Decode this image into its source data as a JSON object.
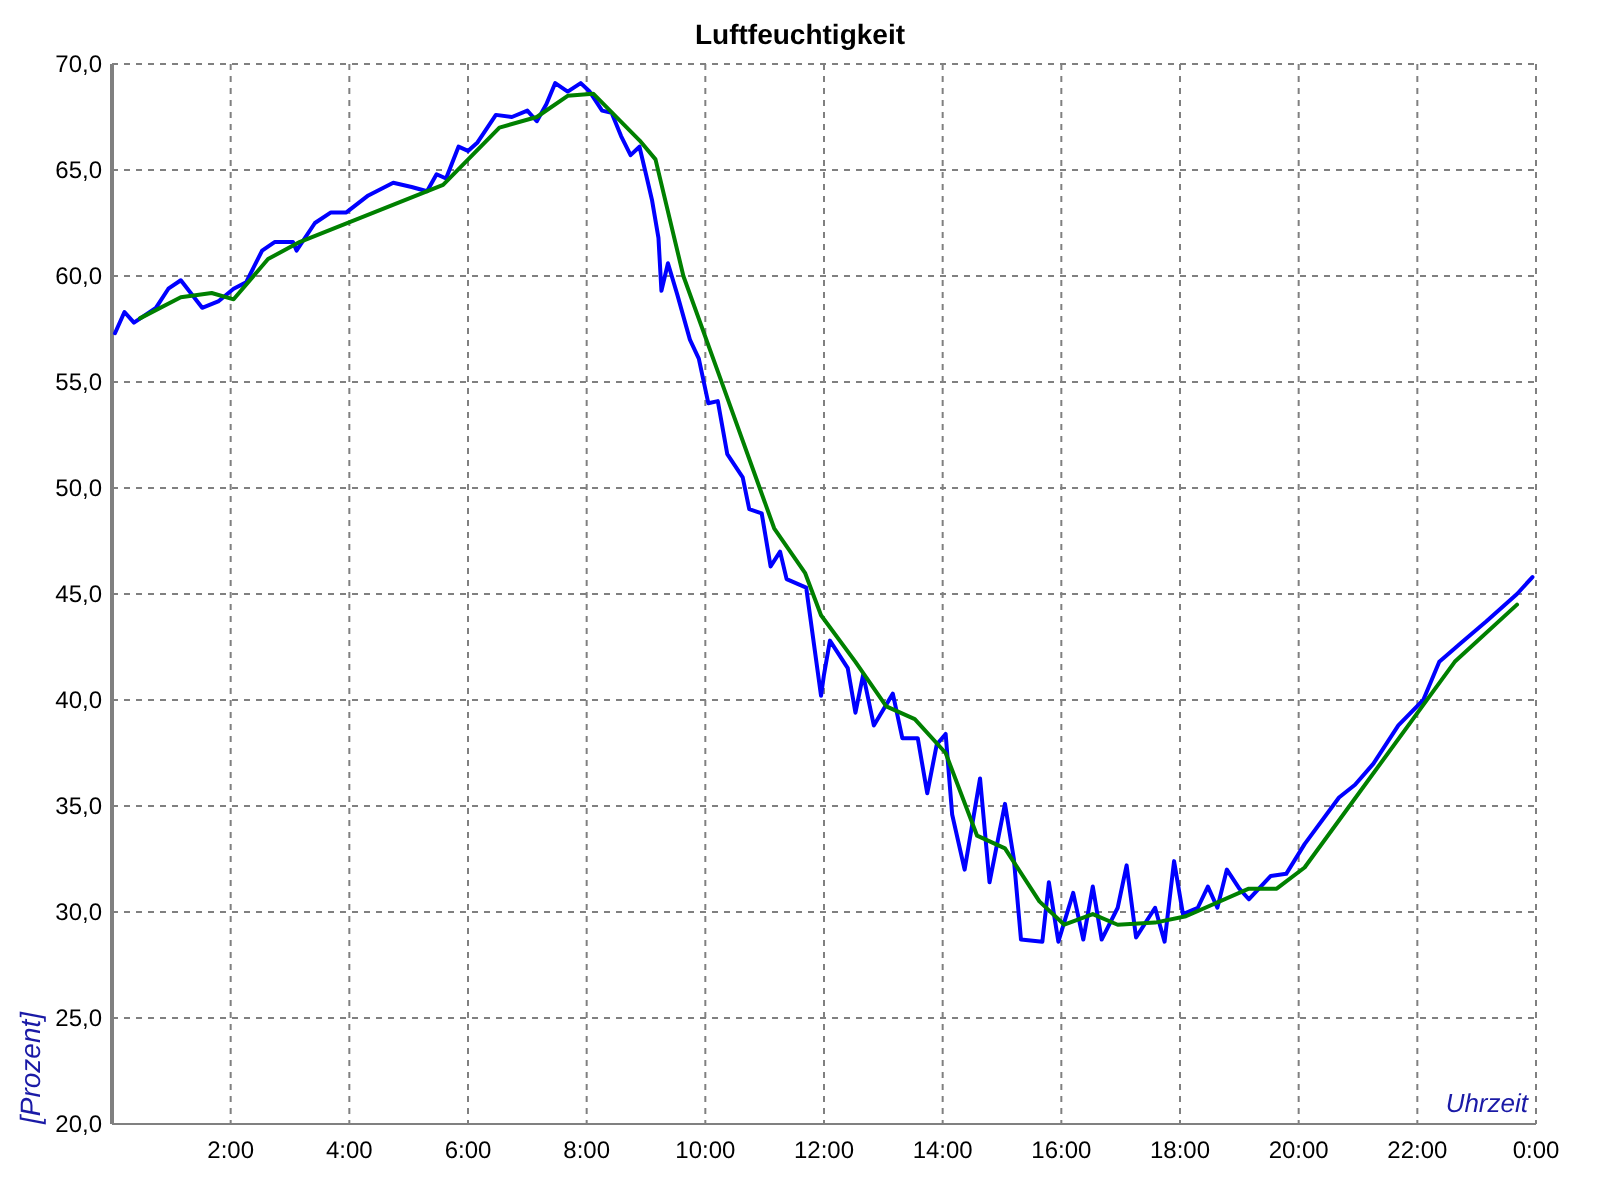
{
  "chart_data": {
    "type": "line",
    "title": "Luftfeuchtigkeit",
    "xlabel": "Uhrzeit",
    "ylabel": "[Prozent]",
    "xlim": [
      0,
      24
    ],
    "ylim": [
      20,
      70
    ],
    "xticks": [
      {
        "value": 0,
        "label": null
      },
      {
        "value": 2,
        "label": "2:00"
      },
      {
        "value": 4,
        "label": "4:00"
      },
      {
        "value": 6,
        "label": "6:00"
      },
      {
        "value": 8,
        "label": "8:00"
      },
      {
        "value": 10,
        "label": "10:00"
      },
      {
        "value": 12,
        "label": "12:00"
      },
      {
        "value": 14,
        "label": "14:00"
      },
      {
        "value": 16,
        "label": "16:00"
      },
      {
        "value": 18,
        "label": "18:00"
      },
      {
        "value": 20,
        "label": "20:00"
      },
      {
        "value": 22,
        "label": "22:00"
      },
      {
        "value": 24,
        "label": "0:00"
      }
    ],
    "yticks": [
      {
        "value": 20,
        "label": "20,0"
      },
      {
        "value": 25,
        "label": "25,0"
      },
      {
        "value": 30,
        "label": "30,0"
      },
      {
        "value": 35,
        "label": "35,0"
      },
      {
        "value": 40,
        "label": "40,0"
      },
      {
        "value": 45,
        "label": "45,0"
      },
      {
        "value": 50,
        "label": "50,0"
      },
      {
        "value": 55,
        "label": "55,0"
      },
      {
        "value": 60,
        "label": "60,0"
      },
      {
        "value": 65,
        "label": "65,0"
      },
      {
        "value": 70,
        "label": "70,0"
      }
    ],
    "grid": true,
    "marker": "none",
    "line_style": "solid",
    "series": [
      {
        "color": "#0000ff",
        "x": [
          0.05,
          0.21,
          0.37,
          0.74,
          0.95,
          1.16,
          1.52,
          1.79,
          2.05,
          2.26,
          2.53,
          2.74,
          3.05,
          3.11,
          3.42,
          3.69,
          3.95,
          4.32,
          4.74,
          5.05,
          5.31,
          5.47,
          5.63,
          5.84,
          6.0,
          6.16,
          6.47,
          6.74,
          7.0,
          7.16,
          7.32,
          7.47,
          7.68,
          7.9,
          8.05,
          8.26,
          8.42,
          8.58,
          8.74,
          8.89,
          9.0,
          9.1,
          9.21,
          9.26,
          9.37,
          9.53,
          9.74,
          9.89,
          10.05,
          10.21,
          10.37,
          10.63,
          10.74,
          10.95,
          11.1,
          11.26,
          11.37,
          11.7,
          11.95,
          12.0,
          12.1,
          12.4,
          12.53,
          12.66,
          12.84,
          13.16,
          13.32,
          13.58,
          13.74,
          13.9,
          14.05,
          14.16,
          14.37,
          14.63,
          14.79,
          15.05,
          15.2,
          15.32,
          15.68,
          15.79,
          15.95,
          16.2,
          16.37,
          16.53,
          16.68,
          16.95,
          17.1,
          17.26,
          17.58,
          17.74,
          17.9,
          18.05,
          18.3,
          18.47,
          18.63,
          18.79,
          19.0,
          19.16,
          19.53,
          19.79,
          20.1,
          20.68,
          20.95,
          21.26,
          21.68,
          22.1,
          22.37,
          22.74,
          23.16,
          23.68,
          23.94
        ],
        "values": [
          57.3,
          58.3,
          57.8,
          58.5,
          59.4,
          59.8,
          58.5,
          58.8,
          59.4,
          59.7,
          61.2,
          61.6,
          61.6,
          61.2,
          62.5,
          63.0,
          63.0,
          63.8,
          64.4,
          64.2,
          64.0,
          64.8,
          64.6,
          66.1,
          65.9,
          66.3,
          67.6,
          67.5,
          67.8,
          67.3,
          68.1,
          69.1,
          68.7,
          69.1,
          68.7,
          67.8,
          67.7,
          66.6,
          65.7,
          66.1,
          64.8,
          63.6,
          61.8,
          59.3,
          60.6,
          59.1,
          57.0,
          56.1,
          54.0,
          54.1,
          51.6,
          50.5,
          49.0,
          48.8,
          46.3,
          47.0,
          45.7,
          45.3,
          40.2,
          41.2,
          42.8,
          41.5,
          39.4,
          41.2,
          38.8,
          40.3,
          38.2,
          38.2,
          35.6,
          37.9,
          38.4,
          34.6,
          32.0,
          36.3,
          31.4,
          35.1,
          32.5,
          28.7,
          28.6,
          31.4,
          28.6,
          30.9,
          28.7,
          31.2,
          28.7,
          30.2,
          32.2,
          28.8,
          30.2,
          28.6,
          32.4,
          29.9,
          30.2,
          31.2,
          30.2,
          32.0,
          31.1,
          30.6,
          31.7,
          31.8,
          33.2,
          35.4,
          36.0,
          37.0,
          38.8,
          40.0,
          41.8,
          42.7,
          43.7,
          45.0,
          45.8
        ]
      },
      {
        "color": "#008000",
        "x": [
          0.47,
          1.16,
          1.68,
          2.05,
          2.63,
          3.16,
          5.58,
          6.53,
          7.16,
          7.68,
          8.11,
          8.89,
          9.16,
          9.63,
          10.21,
          11.16,
          11.68,
          11.95,
          12.53,
          13.05,
          13.53,
          14.05,
          14.58,
          15.05,
          15.63,
          16.05,
          16.53,
          16.95,
          17.58,
          18.1,
          19.16,
          19.63,
          20.1,
          22.63,
          23.68
        ],
        "values": [
          58.0,
          59.0,
          59.2,
          58.9,
          60.8,
          61.6,
          64.3,
          67.0,
          67.5,
          68.5,
          68.6,
          66.4,
          65.5,
          60.0,
          55.5,
          48.1,
          46.0,
          44.0,
          41.8,
          39.7,
          39.1,
          37.5,
          33.6,
          33.0,
          30.5,
          29.4,
          29.9,
          29.4,
          29.5,
          29.8,
          31.1,
          31.1,
          32.1,
          41.8,
          44.5
        ]
      }
    ]
  }
}
